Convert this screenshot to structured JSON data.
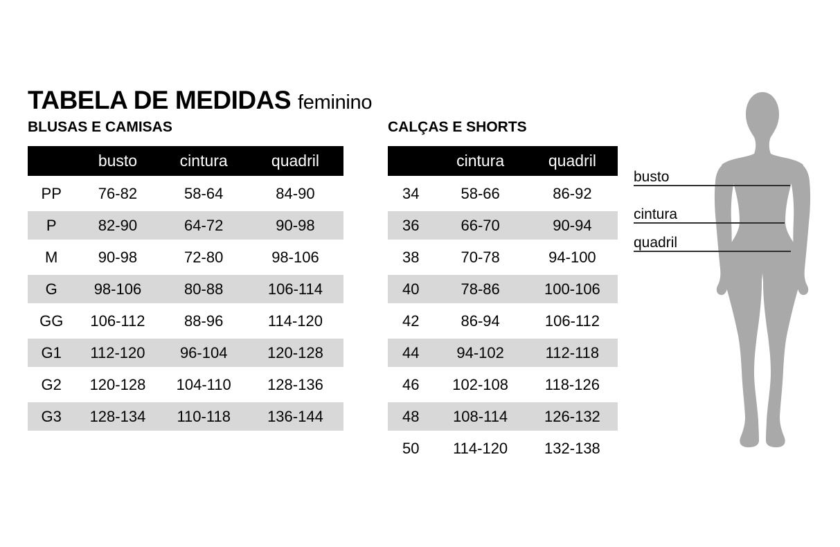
{
  "header": {
    "title": "TABELA DE MEDIDAS",
    "subtitle": "feminino"
  },
  "tables": [
    {
      "heading": "BLUSAS E CAMISAS",
      "columns": [
        "",
        "busto",
        "cintura",
        "quadril"
      ],
      "rows": [
        [
          "PP",
          "76-82",
          "58-64",
          "84-90"
        ],
        [
          "P",
          "82-90",
          "64-72",
          "90-98"
        ],
        [
          "M",
          "90-98",
          "72-80",
          "98-106"
        ],
        [
          "G",
          "98-106",
          "80-88",
          "106-114"
        ],
        [
          "GG",
          "106-112",
          "88-96",
          "114-120"
        ],
        [
          "G1",
          "112-120",
          "96-104",
          "120-128"
        ],
        [
          "G2",
          "120-128",
          "104-110",
          "128-136"
        ],
        [
          "G3",
          "128-134",
          "110-118",
          "136-144"
        ]
      ]
    },
    {
      "heading": "CALÇAS E SHORTS",
      "columns": [
        "",
        "cintura",
        "quadril"
      ],
      "rows": [
        [
          "34",
          "58-66",
          "86-92"
        ],
        [
          "36",
          "66-70",
          "90-94"
        ],
        [
          "38",
          "70-78",
          "94-100"
        ],
        [
          "40",
          "78-86",
          "100-106"
        ],
        [
          "42",
          "86-94",
          "106-112"
        ],
        [
          "44",
          "94-102",
          "112-118"
        ],
        [
          "46",
          "102-108",
          "118-126"
        ],
        [
          "48",
          "108-114",
          "126-132"
        ],
        [
          "50",
          "114-120",
          "132-138"
        ]
      ]
    }
  ],
  "figure": {
    "labels": [
      "busto",
      "cintura",
      "quadril"
    ]
  },
  "colors": {
    "stripe": "#d8d8d8",
    "header_bg": "#000000",
    "header_fg": "#ffffff",
    "silhouette": "#a9a9a9",
    "line": "#2e2e2e",
    "text": "#000000",
    "background": "#ffffff"
  }
}
